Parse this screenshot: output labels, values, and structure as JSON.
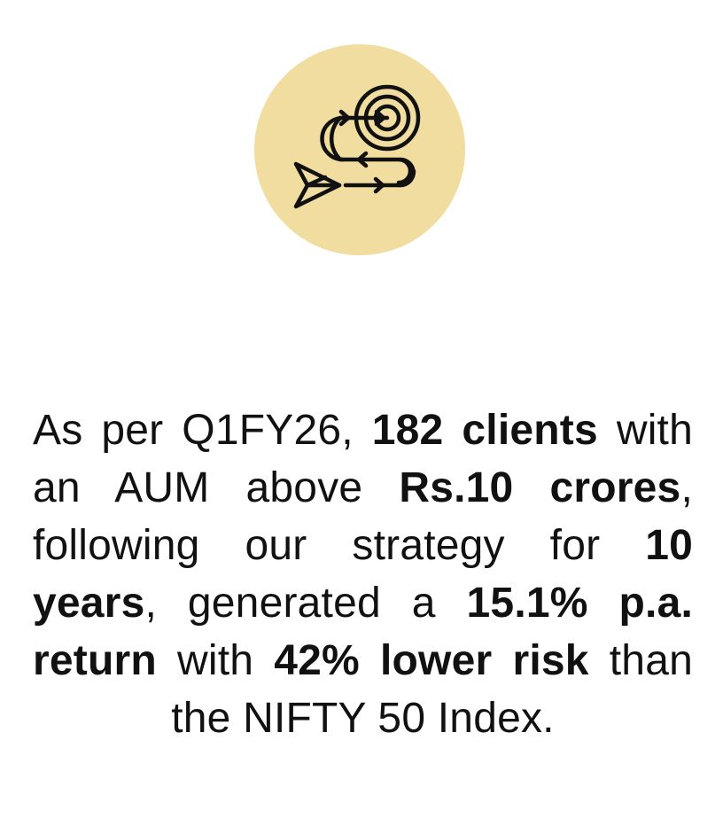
{
  "icon": {
    "name": "target-strategy-icon",
    "background_color": "#f1dd9f",
    "stroke_color": "#111111"
  },
  "statement": {
    "t1": "As per Q1FY26, ",
    "b1": "182 clients",
    "t2": " with an AUM above ",
    "b2": "Rs.10 crores",
    "t3": ", following our strategy for ",
    "b3": "10 years",
    "t4": ", generated a ",
    "b4": "15.1% p.a. return",
    "t5": " with ",
    "b5": "42% lower risk",
    "t6": " than the NIFTY 50 Index."
  }
}
